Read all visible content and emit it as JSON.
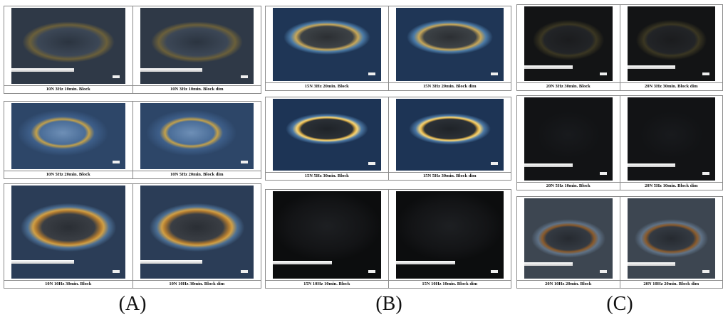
{
  "columns": [
    {
      "label": "(A)",
      "panels": [
        {
          "images": [
            {
              "caption": "10N 3Hz 10min. Block"
            },
            {
              "caption": "10N 3Hz 10min. Block dim"
            }
          ]
        },
        {
          "images": [
            {
              "caption": "10N 5Hz 20min. Block"
            },
            {
              "caption": "10N 5Hz 20min. Block dim"
            }
          ]
        },
        {
          "images": [
            {
              "caption": "10N 10Hz 30min. Block"
            },
            {
              "caption": "10N 10Hz 30min. Block dim"
            }
          ]
        }
      ]
    },
    {
      "label": "(B)",
      "panels": [
        {
          "images": [
            {
              "caption": "15N 3Hz 20min. Block"
            },
            {
              "caption": "15N 3Hz 20min. Block dim"
            }
          ]
        },
        {
          "images": [
            {
              "caption": "15N 5Hz 30min. Block"
            },
            {
              "caption": "15N 5Hz 30min. Block dim"
            }
          ]
        },
        {
          "images": [
            {
              "caption": "15N 10Hz 10min. Block"
            },
            {
              "caption": "15N 10Hz 10min. Block dim"
            }
          ]
        }
      ]
    },
    {
      "label": "(C)",
      "panels": [
        {
          "images": [
            {
              "caption": "20N 3Hz 30min. Block"
            },
            {
              "caption": "20N 3Hz 30min. Block dim"
            }
          ]
        },
        {
          "images": [
            {
              "caption": "20N 5Hz 10min. Block"
            },
            {
              "caption": "20N 5Hz 10min. Block dim"
            }
          ]
        },
        {
          "images": [
            {
              "caption": "20N 10Hz 20min. Block"
            },
            {
              "caption": "20N 10Hz 20min. Block dim"
            }
          ]
        }
      ]
    }
  ]
}
